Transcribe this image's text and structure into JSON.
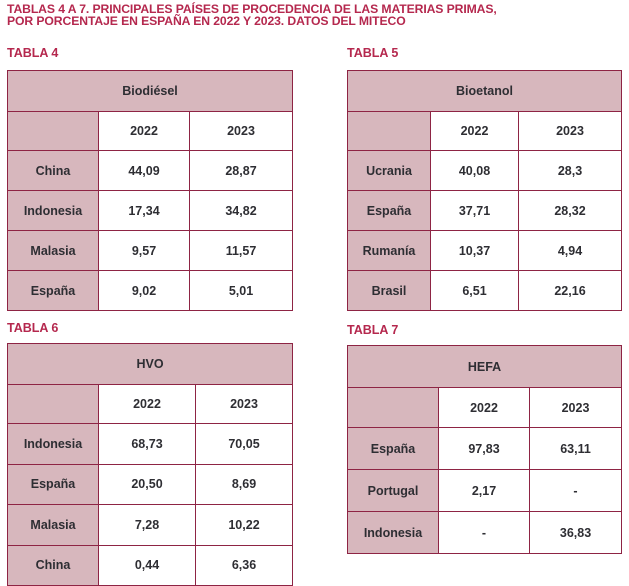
{
  "title_line1": "TABLAS 4 A 7. PRINCIPALES PAÍSES DE PROCEDENCIA DE LAS MATERIAS PRIMAS,",
  "title_line2": "POR PORCENTAJE EN ESPAÑA EN 2022 Y 2023. DATOS DEL MITECO",
  "tables": [
    {
      "label": "TABLA 4",
      "product": "Biodiésel",
      "years": [
        "2022",
        "2023"
      ],
      "rows": [
        {
          "country": "China",
          "v2022": "44,09",
          "v2023": "28,87"
        },
        {
          "country": "Indonesia",
          "v2022": "17,34",
          "v2023": "34,82"
        },
        {
          "country": "Malasia",
          "v2022": "9,57",
          "v2023": "11,57"
        },
        {
          "country": "España",
          "v2022": "9,02",
          "v2023": "5,01"
        }
      ]
    },
    {
      "label": "TABLA 5",
      "product": "Bioetanol",
      "years": [
        "2022",
        "2023"
      ],
      "rows": [
        {
          "country": "Ucrania",
          "v2022": "40,08",
          "v2023": "28,3"
        },
        {
          "country": "España",
          "v2022": "37,71",
          "v2023": "28,32"
        },
        {
          "country": "Rumanía",
          "v2022": "10,37",
          "v2023": "4,94"
        },
        {
          "country": "Brasil",
          "v2022": "6,51",
          "v2023": "22,16"
        }
      ]
    },
    {
      "label": "TABLA 6",
      "product": "HVO",
      "years": [
        "2022",
        "2023"
      ],
      "rows": [
        {
          "country": "Indonesia",
          "v2022": "68,73",
          "v2023": "70,05"
        },
        {
          "country": "España",
          "v2022": "20,50",
          "v2023": "8,69"
        },
        {
          "country": "Malasia",
          "v2022": "7,28",
          "v2023": "10,22"
        },
        {
          "country": "China",
          "v2022": "0,44",
          "v2023": "6,36"
        }
      ]
    },
    {
      "label": "TABLA 7",
      "product": "HEFA",
      "years": [
        "2022",
        "2023"
      ],
      "rows": [
        {
          "country": "España",
          "v2022": "97,83",
          "v2023": "63,11"
        },
        {
          "country": "Portugal",
          "v2022": "2,17",
          "v2023": "-"
        },
        {
          "country": "Indonesia",
          "v2022": "-",
          "v2023": "36,83"
        }
      ]
    }
  ]
}
